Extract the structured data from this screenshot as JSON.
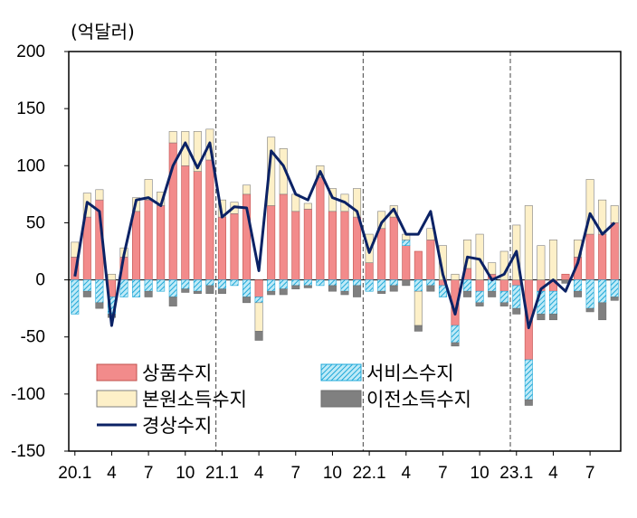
{
  "chart_data": {
    "type": "bar",
    "unit_label": "(억달러)",
    "ylim": [
      -150,
      200
    ],
    "yticks": [
      200,
      150,
      100,
      50,
      0,
      -50,
      -100,
      -150
    ],
    "xtick_labels": [
      {
        "index": 0,
        "label": "20.1"
      },
      {
        "index": 3,
        "label": "4"
      },
      {
        "index": 6,
        "label": "7"
      },
      {
        "index": 9,
        "label": "10"
      },
      {
        "index": 12,
        "label": "21.1"
      },
      {
        "index": 15,
        "label": "4"
      },
      {
        "index": 18,
        "label": "7"
      },
      {
        "index": 21,
        "label": "10"
      },
      {
        "index": 24,
        "label": "22.1"
      },
      {
        "index": 27,
        "label": "4"
      },
      {
        "index": 30,
        "label": "7"
      },
      {
        "index": 33,
        "label": "10"
      },
      {
        "index": 36,
        "label": "23.1"
      },
      {
        "index": 39,
        "label": "4"
      },
      {
        "index": 42,
        "label": "7"
      }
    ],
    "year_divider_indices": [
      12,
      24,
      36
    ],
    "series": [
      {
        "name": "상품수지",
        "color": "#f28b8b",
        "values": [
          20,
          55,
          70,
          -15,
          20,
          60,
          70,
          65,
          120,
          100,
          95,
          105,
          55,
          58,
          75,
          -15,
          65,
          75,
          60,
          62,
          90,
          60,
          60,
          55,
          15,
          45,
          55,
          30,
          25,
          35,
          -5,
          -40,
          10,
          -10,
          5,
          -10,
          -5,
          -70,
          -10,
          -10,
          5,
          20,
          40,
          40,
          50
        ]
      },
      {
        "name": "서비스수지",
        "color": "#5cc8e8",
        "values": [
          -30,
          -10,
          -20,
          -15,
          -15,
          -15,
          -10,
          -10,
          -15,
          -8,
          -10,
          -5,
          -8,
          -5,
          -15,
          -5,
          -10,
          -8,
          -5,
          -5,
          -5,
          -5,
          -10,
          -5,
          -10,
          -10,
          -5,
          5,
          -10,
          -5,
          -10,
          -15,
          -10,
          -10,
          -10,
          -10,
          -20,
          -35,
          -20,
          -20,
          0,
          -10,
          -25,
          -20,
          -15
        ]
      },
      {
        "name": "본원소득수지",
        "color": "#fdf0c8",
        "values": [
          13,
          21,
          9,
          5,
          8,
          12,
          18,
          12,
          10,
          30,
          35,
          27,
          15,
          10,
          8,
          -25,
          60,
          40,
          15,
          5,
          10,
          20,
          15,
          25,
          25,
          15,
          10,
          5,
          -30,
          10,
          30,
          5,
          25,
          40,
          10,
          25,
          48,
          65,
          30,
          35,
          0,
          15,
          48,
          30,
          15
        ]
      },
      {
        "name": "이전소득수지",
        "color": "#808080",
        "values": [
          0,
          -5,
          -5,
          -3,
          0,
          0,
          -5,
          0,
          -8,
          -3,
          -2,
          -7,
          -4,
          0,
          -5,
          -8,
          -3,
          -5,
          -3,
          -2,
          0,
          -5,
          -3,
          -10,
          0,
          -2,
          -5,
          -5,
          -5,
          -5,
          0,
          -3,
          -5,
          -3,
          -5,
          -3,
          -5,
          -5,
          -5,
          -5,
          -3,
          -5,
          -3,
          -15,
          -3
        ]
      },
      {
        "name": "경상수지",
        "color": "#0b2265",
        "type": "line",
        "values": [
          3,
          68,
          60,
          -40,
          22,
          70,
          72,
          65,
          100,
          120,
          98,
          120,
          55,
          64,
          63,
          8,
          113,
          100,
          75,
          70,
          95,
          72,
          68,
          60,
          24,
          50,
          62,
          40,
          40,
          60,
          5,
          -30,
          20,
          18,
          0,
          5,
          25,
          -42,
          -8,
          0,
          -10,
          15,
          58,
          40,
          50
        ]
      }
    ]
  }
}
